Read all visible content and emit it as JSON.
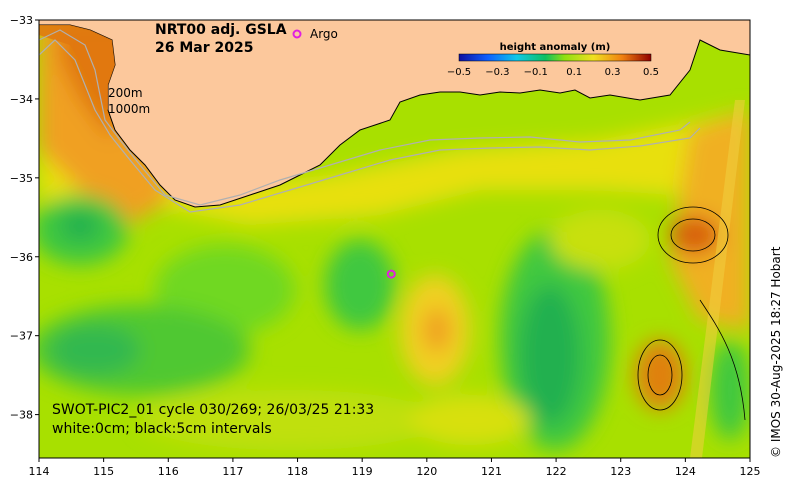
{
  "title": {
    "line1": "NRT00 adj. GSLA",
    "line2": "26 Mar 2025"
  },
  "legend": {
    "argo_label": "Argo",
    "argo_color": "#e020e0"
  },
  "colorbar": {
    "title": "height anomaly (m)",
    "ticks": [
      "−0.5",
      "−0.3",
      "−0.1",
      "0.1",
      "0.3",
      "0.5"
    ]
  },
  "annotations": {
    "isobath_1": "200m",
    "isobath_2": "1000m",
    "swot_line": "SWOT-PIC2_01 cycle 030/269; 26/03/25 21:33",
    "contour_note": "white:0cm; black:5cm intervals"
  },
  "credit": "© IMOS 30-Aug-2025 18:27 Hobart",
  "axes": {
    "x_ticks": [
      "114",
      "115",
      "116",
      "117",
      "118",
      "119",
      "120",
      "121",
      "122",
      "123",
      "124",
      "125"
    ],
    "y_ticks": [
      "−33",
      "−34",
      "−35",
      "−36",
      "−37",
      "−38"
    ],
    "x_range": [
      114,
      125
    ],
    "y_range": [
      -38.55,
      -33
    ]
  },
  "colors": {
    "land": "#fcc89c",
    "ocean_base": "#a8e000"
  },
  "argo_float": {
    "lon": 119.45,
    "lat": -36.22
  }
}
